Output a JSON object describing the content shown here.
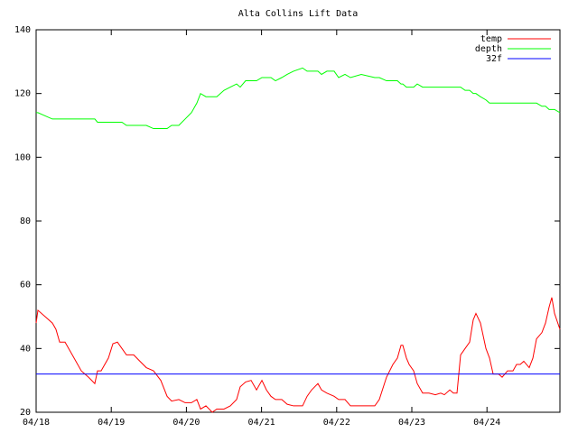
{
  "chart_data": {
    "type": "line",
    "title": "Alta Collins Lift Data",
    "x": [
      0,
      0.024,
      0.12,
      0.216,
      0.264,
      0.313,
      0.385,
      0.481,
      0.601,
      0.697,
      0.781,
      0.817,
      0.865,
      0.962,
      1.022,
      1.082,
      1.142,
      1.202,
      1.298,
      1.382,
      1.466,
      1.562,
      1.659,
      1.743,
      1.803,
      1.899,
      1.983,
      2.067,
      2.139,
      2.188,
      2.26,
      2.344,
      2.404,
      2.5,
      2.584,
      2.668,
      2.716,
      2.788,
      2.861,
      2.933,
      3.005,
      3.065,
      3.125,
      3.185,
      3.269,
      3.341,
      3.425,
      3.546,
      3.606,
      3.666,
      3.75,
      3.798,
      3.87,
      3.966,
      4.026,
      4.111,
      4.183,
      4.327,
      4.507,
      4.567,
      4.663,
      4.748,
      4.808,
      4.856,
      4.88,
      4.928,
      4.964,
      5.024,
      5.072,
      5.144,
      5.228,
      5.313,
      5.385,
      5.433,
      5.505,
      5.553,
      5.601,
      5.649,
      5.709,
      5.769,
      5.817,
      5.853,
      5.913,
      5.986,
      6.034,
      6.082,
      6.154,
      6.202,
      6.274,
      6.346,
      6.394,
      6.442,
      6.49,
      6.562,
      6.611,
      6.659,
      6.731,
      6.779,
      6.827,
      6.863,
      6.899,
      6.971
    ],
    "series": [
      {
        "name": "temp",
        "color": "#ff0000",
        "values": [
          48,
          52,
          50,
          48,
          46,
          42,
          42,
          38,
          33,
          31,
          29,
          33,
          33,
          37,
          41.5,
          42,
          40,
          38,
          38,
          36,
          34,
          33,
          30,
          25,
          23.5,
          24,
          23,
          23,
          24,
          21,
          22,
          20,
          21,
          21,
          22,
          24,
          28,
          29.5,
          30,
          27,
          30,
          27,
          25,
          24,
          24,
          22.5,
          22,
          22,
          25,
          27,
          29,
          27,
          26,
          25,
          24,
          24,
          22,
          22,
          22,
          24,
          31,
          35,
          37,
          41,
          41,
          37,
          35,
          33,
          29,
          26,
          26,
          25.5,
          26,
          25.5,
          27,
          26,
          26,
          38,
          40,
          42,
          49,
          51,
          48,
          40,
          37,
          32,
          32,
          31,
          33,
          33,
          35,
          35,
          36,
          34,
          37,
          43,
          45,
          48,
          53,
          56,
          51,
          46
        ]
      },
      {
        "name": "depth",
        "color": "#00ff00",
        "values": [
          114,
          114,
          113,
          112,
          112,
          112,
          112,
          112,
          112,
          112,
          112,
          111,
          111,
          111,
          111,
          111,
          111,
          110,
          110,
          110,
          110,
          109,
          109,
          109,
          110,
          110,
          112,
          114,
          117,
          120,
          119,
          119,
          119,
          121,
          122,
          123,
          122,
          124,
          124,
          124,
          125,
          125,
          125,
          124,
          125,
          126,
          127,
          128,
          127,
          127,
          127,
          126,
          127,
          127,
          125,
          126,
          125,
          126,
          125,
          125,
          124,
          124,
          124,
          123,
          123,
          122,
          122,
          122,
          123,
          122,
          122,
          122,
          122,
          122,
          122,
          122,
          122,
          122,
          121,
          121,
          120,
          120,
          119,
          118,
          117,
          117,
          117,
          117,
          117,
          117,
          117,
          117,
          117,
          117,
          117,
          117,
          116,
          116,
          115,
          115,
          115,
          114
        ]
      },
      {
        "name": "32f",
        "color": "#0000ff",
        "values": [
          32,
          32,
          32,
          32,
          32,
          32,
          32,
          32,
          32,
          32,
          32,
          32,
          32,
          32,
          32,
          32,
          32,
          32,
          32,
          32,
          32,
          32,
          32,
          32,
          32,
          32,
          32,
          32,
          32,
          32,
          32,
          32,
          32,
          32,
          32,
          32,
          32,
          32,
          32,
          32,
          32,
          32,
          32,
          32,
          32,
          32,
          32,
          32,
          32,
          32,
          32,
          32,
          32,
          32,
          32,
          32,
          32,
          32,
          32,
          32,
          32,
          32,
          32,
          32,
          32,
          32,
          32,
          32,
          32,
          32,
          32,
          32,
          32,
          32,
          32,
          32,
          32,
          32,
          32,
          32,
          32,
          32,
          32,
          32,
          32,
          32,
          32,
          32,
          32,
          32,
          32,
          32,
          32,
          32,
          32,
          32,
          32,
          32,
          32,
          32,
          32,
          32
        ]
      }
    ],
    "xlim": [
      0,
      6.971
    ],
    "xticks": [
      {
        "value": 0,
        "label": "04/18"
      },
      {
        "value": 1,
        "label": "04/19"
      },
      {
        "value": 2,
        "label": "04/20"
      },
      {
        "value": 3,
        "label": "04/21"
      },
      {
        "value": 4,
        "label": "04/22"
      },
      {
        "value": 5,
        "label": "04/23"
      },
      {
        "value": 6,
        "label": "04/24"
      }
    ],
    "ylim": [
      20,
      140
    ],
    "yticks": [
      20,
      40,
      60,
      80,
      100,
      120,
      140
    ],
    "legend": "top-right"
  }
}
